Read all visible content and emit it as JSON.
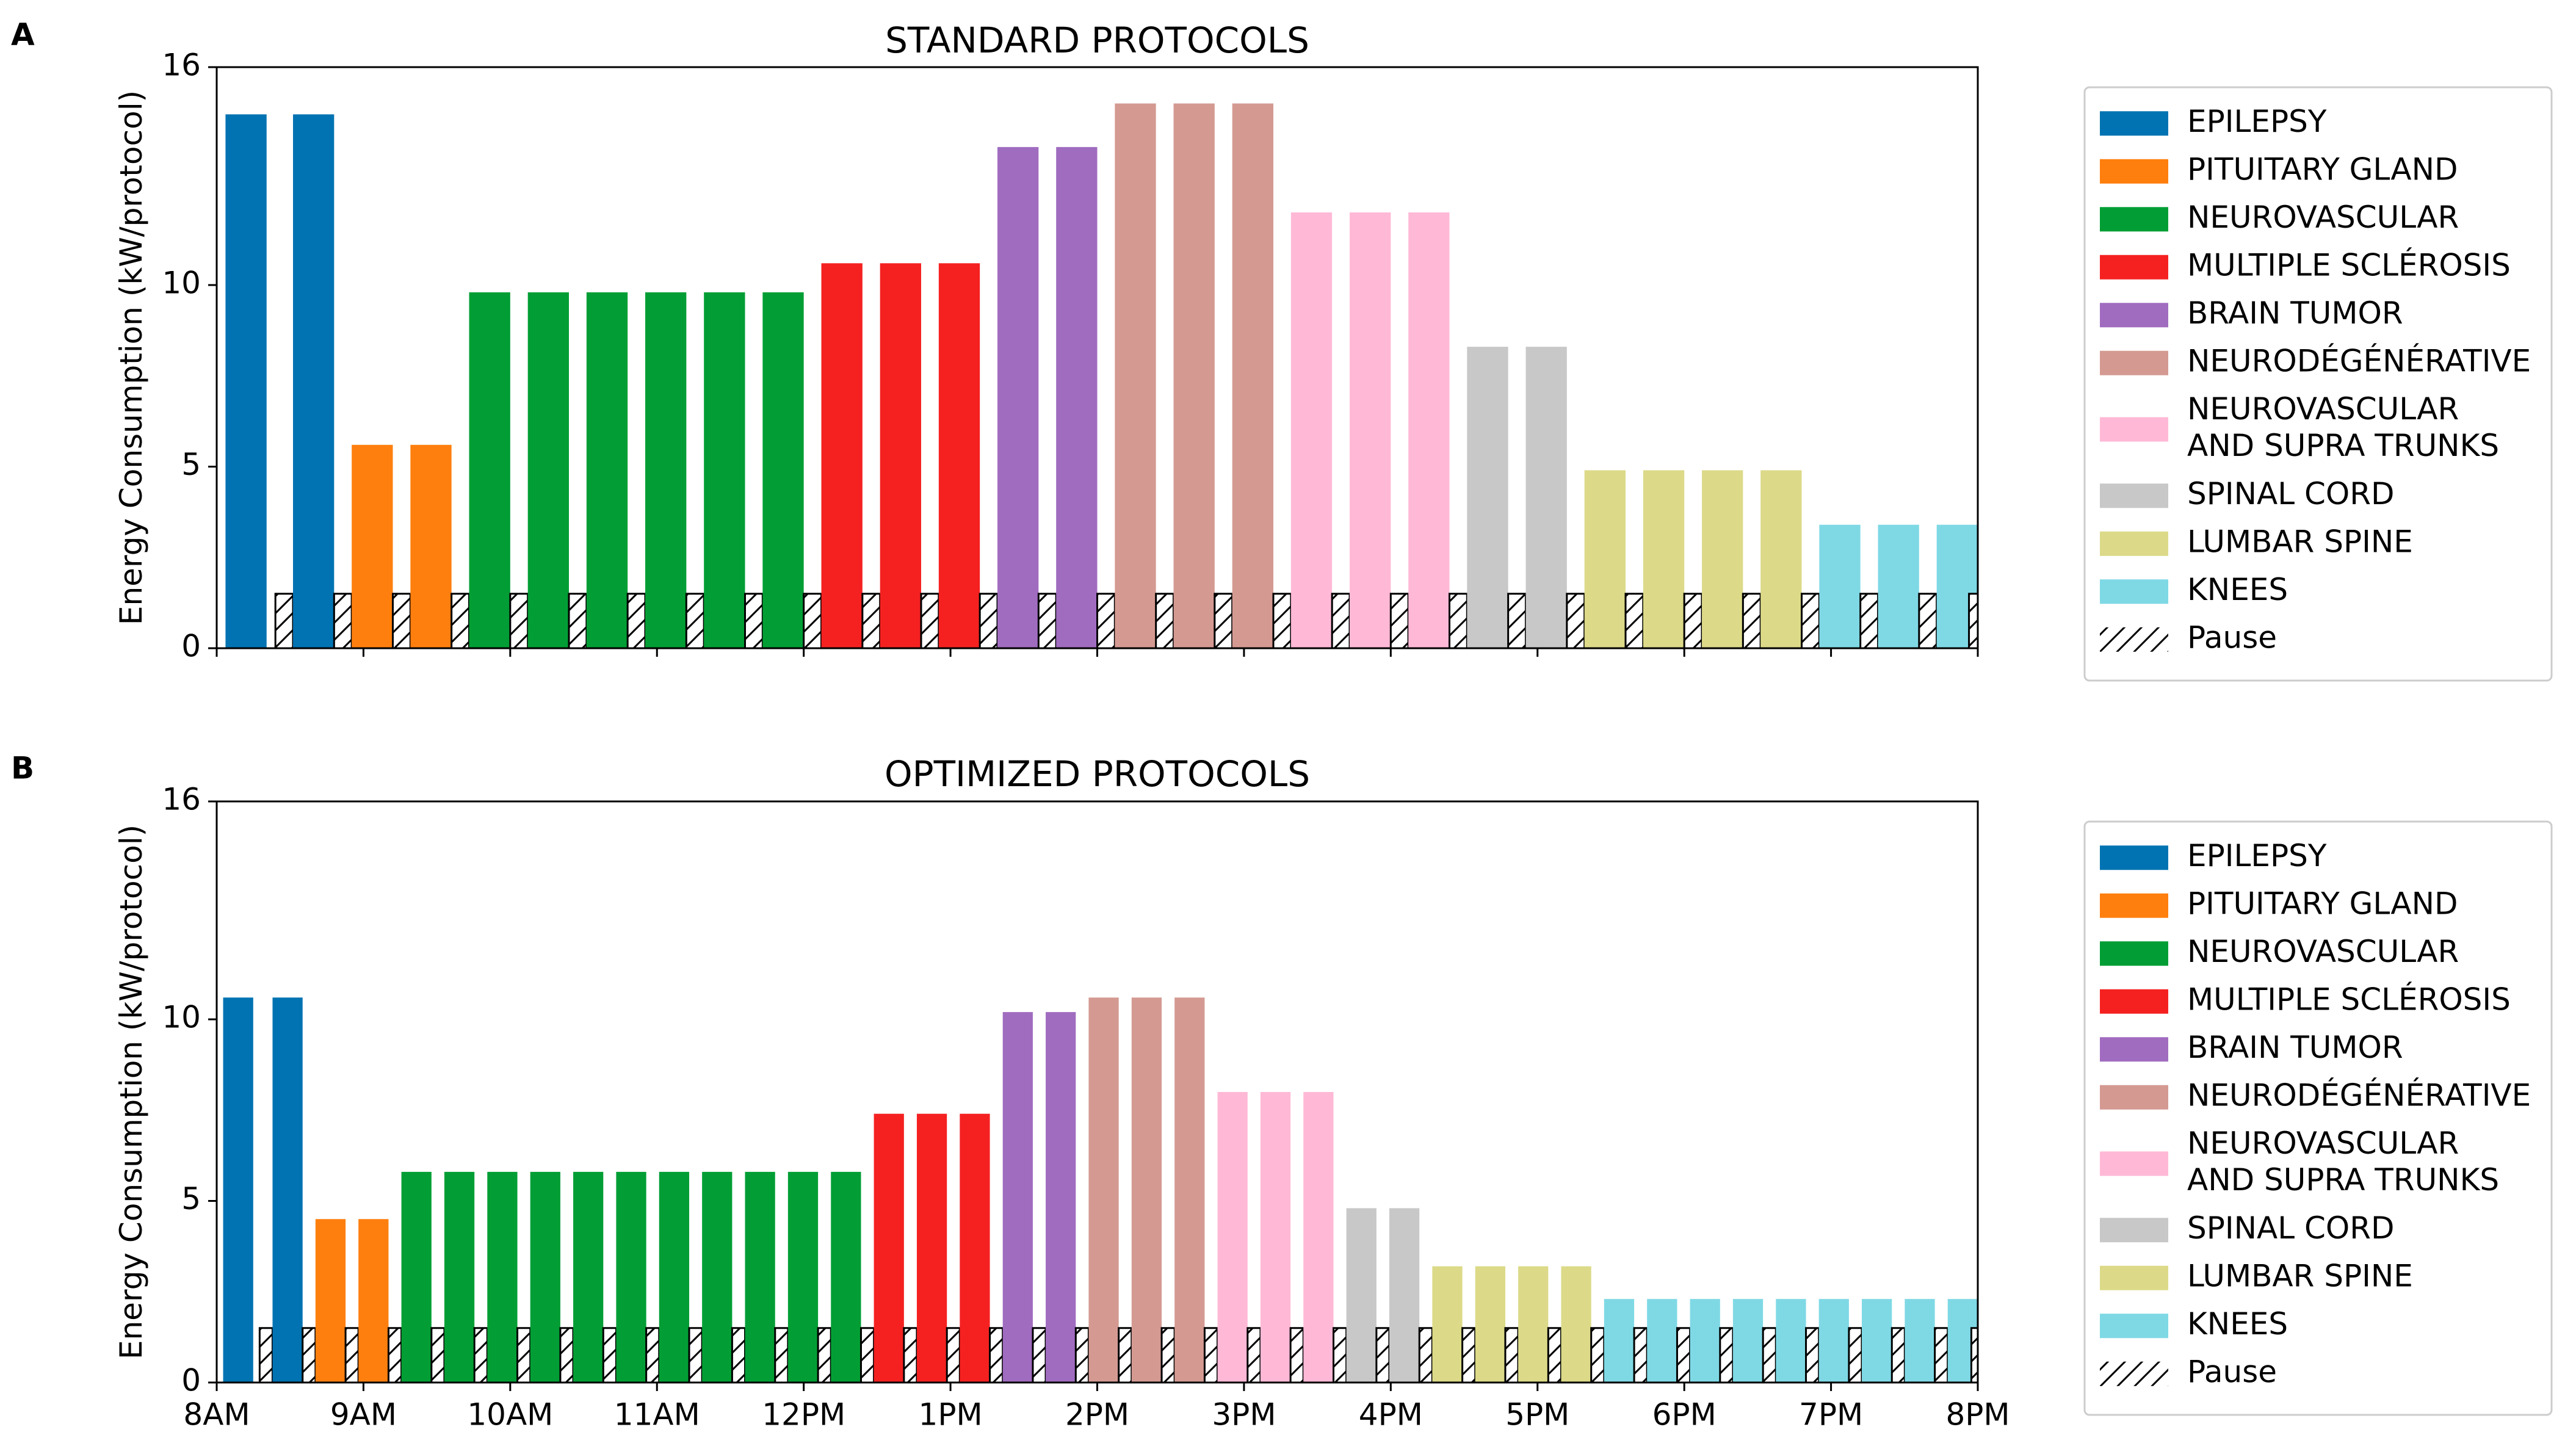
{
  "chart_data": [
    {
      "panel_label": "A",
      "type": "bar",
      "title": "STANDARD PROTOCOLS",
      "ylabel": "Energy Consumption (kW/protocol)",
      "xlabel": "",
      "ylim": [
        0,
        16
      ],
      "y_ticks": [
        "0",
        "5",
        "10",
        "16"
      ],
      "x_ticks": [],
      "legend_position": "right",
      "pause_value": 1.5,
      "series": [
        {
          "name": "EPILEPSY",
          "color": "#0173b2",
          "count": 2,
          "value": 14.7
        },
        {
          "name": "PITUITARY GLAND",
          "color": "#ff7f0e",
          "count": 2,
          "value": 5.6
        },
        {
          "name": "NEUROVASCULAR",
          "color": "#029e35",
          "count": 6,
          "value": 9.8
        },
        {
          "name": "MULTIPLE SCLÉROSIS",
          "color": "#f52121",
          "count": 3,
          "value": 10.6
        },
        {
          "name": "BRAIN TUMOR",
          "color": "#a06cc0",
          "count": 2,
          "value": 13.8
        },
        {
          "name": "NEURODÉGÉNÉRATIVE",
          "color": "#d49a92",
          "count": 3,
          "value": 15.0
        },
        {
          "name": "NEUROVASCULAR AND SUPRA TRUNKS",
          "color": "#ffb9d6",
          "count": 3,
          "value": 12.0
        },
        {
          "name": "SPINAL CORD",
          "color": "#c8c8c8",
          "count": 2,
          "value": 8.3
        },
        {
          "name": "LUMBAR SPINE",
          "color": "#dcda88",
          "count": 4,
          "value": 4.9
        },
        {
          "name": "KNEES",
          "color": "#7fd9e5",
          "count": 3,
          "value": 3.4
        }
      ],
      "legend": [
        {
          "label": "EPILEPSY"
        },
        {
          "label": "PITUITARY GLAND"
        },
        {
          "label": "NEUROVASCULAR"
        },
        {
          "label": "MULTIPLE SCLÉROSIS"
        },
        {
          "label": "BRAIN TUMOR"
        },
        {
          "label": "NEURODÉGÉNÉRATIVE"
        },
        {
          "label": "NEUROVASCULAR",
          "label2": "AND SUPRA TRUNKS"
        },
        {
          "label": "SPINAL CORD"
        },
        {
          "label": "LUMBAR SPINE"
        },
        {
          "label": "KNEES"
        },
        {
          "label": "Pause"
        }
      ]
    },
    {
      "panel_label": "B",
      "type": "bar",
      "title": "OPTIMIZED PROTOCOLS",
      "ylabel": "Energy Consumption (kW/protocol)",
      "xlabel": "",
      "ylim": [
        0,
        16
      ],
      "y_ticks": [
        "0",
        "5",
        "10",
        "16"
      ],
      "x_ticks": [
        "8AM",
        "9AM",
        "10AM",
        "11AM",
        "12PM",
        "1PM",
        "2PM",
        "3PM",
        "4PM",
        "5PM",
        "6PM",
        "7PM",
        "8PM"
      ],
      "legend_position": "right",
      "pause_value": 1.5,
      "series": [
        {
          "name": "EPILEPSY",
          "color": "#0173b2",
          "count": 2,
          "value": 10.6
        },
        {
          "name": "PITUITARY GLAND",
          "color": "#ff7f0e",
          "count": 2,
          "value": 4.5
        },
        {
          "name": "NEUROVASCULAR",
          "color": "#029e35",
          "count": 11,
          "value": 5.8
        },
        {
          "name": "MULTIPLE SCLÉROSIS",
          "color": "#f52121",
          "count": 3,
          "value": 7.4
        },
        {
          "name": "BRAIN TUMOR",
          "color": "#a06cc0",
          "count": 2,
          "value": 10.2
        },
        {
          "name": "NEURODÉGÉNÉRATIVE",
          "color": "#d49a92",
          "count": 3,
          "value": 10.6
        },
        {
          "name": "NEUROVASCULAR AND SUPRA TRUNKS",
          "color": "#ffb9d6",
          "count": 3,
          "value": 8.0
        },
        {
          "name": "SPINAL CORD",
          "color": "#c8c8c8",
          "count": 2,
          "value": 4.8
        },
        {
          "name": "LUMBAR SPINE",
          "color": "#dcda88",
          "count": 4,
          "value": 3.2
        },
        {
          "name": "KNEES",
          "color": "#7fd9e5",
          "count": 9,
          "value": 2.3
        }
      ],
      "legend": [
        {
          "label": "EPILEPSY"
        },
        {
          "label": "PITUITARY GLAND"
        },
        {
          "label": "NEUROVASCULAR"
        },
        {
          "label": "MULTIPLE SCLÉROSIS"
        },
        {
          "label": "BRAIN TUMOR"
        },
        {
          "label": "NEURODÉGÉNÉRATIVE"
        },
        {
          "label": "NEUROVASCULAR",
          "label2": "AND SUPRA TRUNKS"
        },
        {
          "label": "SPINAL CORD"
        },
        {
          "label": "LUMBAR SPINE"
        },
        {
          "label": "KNEES"
        },
        {
          "label": "Pause"
        }
      ]
    }
  ]
}
